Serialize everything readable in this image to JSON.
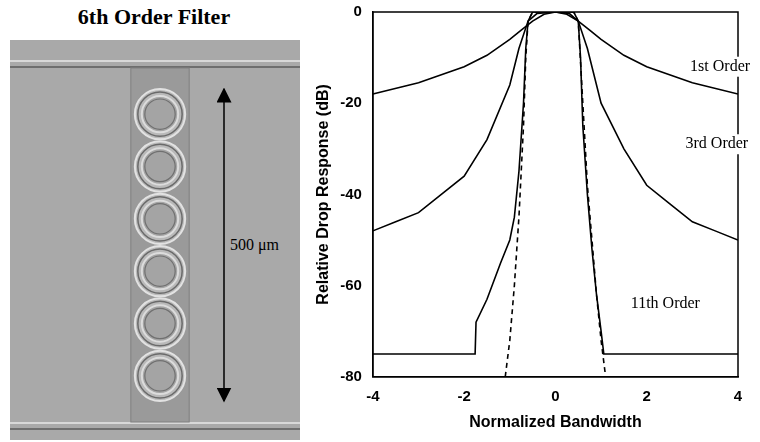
{
  "chart_data": {
    "type": "line",
    "x_label": "Normalized Bandwidth",
    "y_label": "Relative Drop Response (dB)",
    "xlim": [
      -4,
      4
    ],
    "xticks": [
      -4,
      -2,
      0,
      2,
      4
    ],
    "ylim": [
      -80,
      0
    ],
    "yticks": [
      -80,
      -60,
      -40,
      -20,
      0
    ],
    "grid": false,
    "series": [
      {
        "name": "1st Order",
        "color": "#000000",
        "line_style": "solid",
        "label_at": [
          2.95,
          -12
        ],
        "x": [
          -4,
          -3,
          -2,
          -1.5,
          -1,
          -0.75,
          -0.5,
          -0.25,
          0,
          0.25,
          0.5,
          0.75,
          1,
          1.5,
          2,
          3,
          4
        ],
        "values": [
          -18,
          -15.5,
          -12,
          -9.5,
          -6,
          -4,
          -2,
          -0.5,
          0,
          -0.5,
          -2,
          -4,
          -6,
          -9.5,
          -12,
          -15.5,
          -18
        ]
      },
      {
        "name": "3rd Order",
        "color": "#000000",
        "line_style": "solid",
        "label_at": [
          2.85,
          -29
        ],
        "x": [
          -4,
          -3.5,
          -3,
          -2.5,
          -2,
          -1.5,
          -1,
          -0.8,
          -0.6,
          -0.4,
          0,
          0.3,
          0.5,
          0.7,
          1,
          1.5,
          2,
          2.5,
          3,
          3.5,
          4
        ],
        "values": [
          -48,
          -46,
          -44,
          -40,
          -36,
          -28,
          -16,
          -8,
          -2,
          -0.3,
          0,
          -0.3,
          -2,
          -8,
          -20,
          -30,
          -38,
          -42,
          -46,
          -48,
          -50
        ]
      },
      {
        "name": "11th Order",
        "color": "#000000",
        "line_style": "solid",
        "label_at": [
          1.65,
          -64
        ],
        "x": [
          -4,
          -1.76,
          -1.74,
          -1.5,
          -1.2,
          -1,
          -0.9,
          -0.8,
          -0.7,
          -0.65,
          -0.6,
          -0.5,
          0,
          0.4,
          0.5,
          0.55,
          0.6,
          0.7,
          0.8,
          0.9,
          1,
          1.06,
          4
        ],
        "values": [
          -75,
          -75,
          -68,
          -63,
          -55,
          -50,
          -45,
          -35,
          -20,
          -8,
          -2,
          0,
          0,
          0,
          -2,
          -10,
          -25,
          -40,
          -52,
          -62,
          -70,
          -75,
          -75
        ]
      },
      {
        "color": "#000000",
        "line_style": "dashed",
        "x": [
          -1.1,
          -1,
          -0.9,
          -0.8,
          -0.7,
          -0.65,
          -0.6,
          -0.5,
          0.4,
          0.5,
          0.6,
          0.7,
          0.8,
          0.9,
          1,
          1.1
        ],
        "values": [
          -80,
          -72,
          -60,
          -45,
          -25,
          -10,
          -2,
          0,
          0,
          -2,
          -20,
          -38,
          -50,
          -62,
          -72,
          -80
        ]
      }
    ]
  },
  "figure": {
    "title": "6th Order Filter",
    "scale_label": "500 μm",
    "rings": 6
  }
}
